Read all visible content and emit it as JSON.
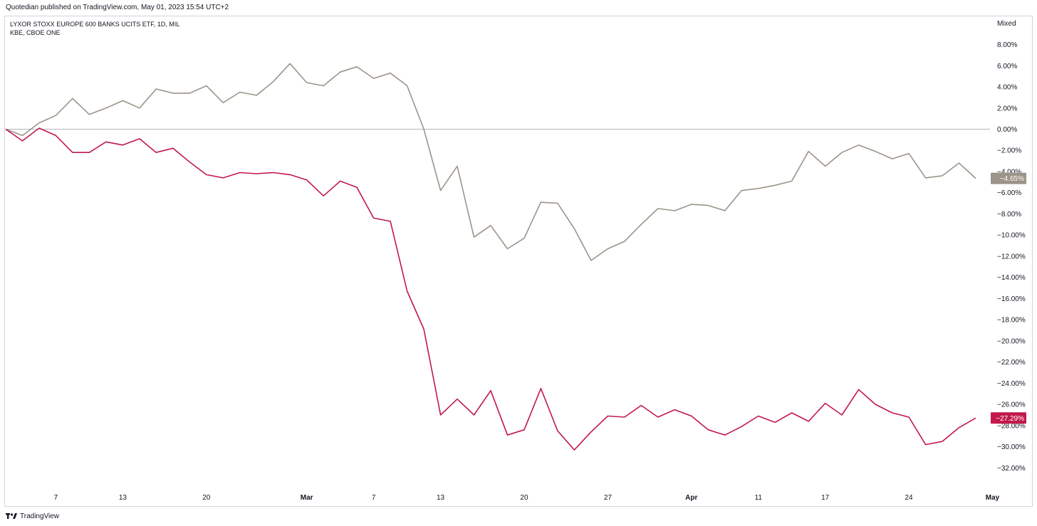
{
  "header": {
    "published": "Quotedian published on TradingView.com, May 01, 2023 15:54 UTC+2"
  },
  "legend": {
    "line1": "LYXOR STOXX EUROPE 600 BANKS UCITS ETF, 1D, MIL",
    "line2": "KBE, CBOE ONE"
  },
  "scale_mode": "Mixed",
  "footer": {
    "brand": "TradingView"
  },
  "chart_data": {
    "type": "line",
    "ylim": [
      -33,
      9
    ],
    "y_ticks": [
      "8.00%",
      "6.00%",
      "4.00%",
      "2.00%",
      "0.00%",
      "−2.00%",
      "−4.00%",
      "−6.00%",
      "−8.00%",
      "−10.00%",
      "−12.00%",
      "−14.00%",
      "−16.00%",
      "−18.00%",
      "−20.00%",
      "−22.00%",
      "−24.00%",
      "−26.00%",
      "−28.00%",
      "−30.00%",
      "−32.00%"
    ],
    "y_tick_values": [
      8,
      6,
      4,
      2,
      0,
      -2,
      -4,
      -6,
      -8,
      -10,
      -12,
      -14,
      -16,
      -18,
      -20,
      -22,
      -24,
      -26,
      -28,
      -30,
      -32
    ],
    "x_ticks": [
      {
        "label": "7",
        "pos": 3,
        "bold": false
      },
      {
        "label": "13",
        "pos": 7,
        "bold": false
      },
      {
        "label": "20",
        "pos": 12,
        "bold": false
      },
      {
        "label": "Mar",
        "pos": 18,
        "bold": true
      },
      {
        "label": "7",
        "pos": 22,
        "bold": false
      },
      {
        "label": "13",
        "pos": 26,
        "bold": false
      },
      {
        "label": "20",
        "pos": 31,
        "bold": false
      },
      {
        "label": "27",
        "pos": 36,
        "bold": false
      },
      {
        "label": "Apr",
        "pos": 41,
        "bold": true
      },
      {
        "label": "11",
        "pos": 45,
        "bold": false
      },
      {
        "label": "17",
        "pos": 49,
        "bold": false
      },
      {
        "label": "24",
        "pos": 54,
        "bold": false
      },
      {
        "label": "May",
        "pos": 59,
        "bold": true
      }
    ],
    "series": [
      {
        "color": "#9c9489",
        "last_label": "−4.65%",
        "values": [
          0,
          -0.6,
          0.6,
          1.3,
          2.9,
          1.4,
          2.0,
          2.7,
          2.0,
          3.8,
          3.4,
          3.4,
          4.1,
          2.5,
          3.5,
          3.2,
          4.5,
          6.2,
          4.4,
          4.1,
          5.4,
          5.9,
          4.8,
          5.3,
          4.1,
          0.0,
          -5.8,
          -3.5,
          -10.2,
          -9.1,
          -11.3,
          -10.3,
          -6.9,
          -7.0,
          -9.4,
          -12.4,
          -11.3,
          -10.6,
          -9.0,
          -7.5,
          -7.7,
          -7.1,
          -7.2,
          -7.7,
          -5.8,
          -5.6,
          -5.3,
          -4.9,
          -2.1,
          -3.5,
          -2.2,
          -1.5,
          -2.1,
          -2.8,
          -2.3,
          -4.6,
          -4.4,
          -3.2,
          -4.65
        ]
      },
      {
        "color": "#c2184b",
        "last_label": "−27.29%",
        "values": [
          0,
          -1.1,
          0.1,
          -0.6,
          -2.2,
          -2.2,
          -1.2,
          -1.5,
          -0.9,
          -2.2,
          -1.8,
          -3.1,
          -4.3,
          -4.6,
          -4.1,
          -4.2,
          -4.1,
          -4.3,
          -4.8,
          -6.3,
          -4.9,
          -5.5,
          -8.4,
          -8.7,
          -15.3,
          -18.9,
          -27.0,
          -25.5,
          -27.0,
          -24.7,
          -28.9,
          -28.4,
          -24.5,
          -28.5,
          -30.3,
          -28.6,
          -27.1,
          -27.2,
          -26.1,
          -27.2,
          -26.5,
          -27.1,
          -28.4,
          -28.9,
          -28.1,
          -27.1,
          -27.7,
          -26.8,
          -27.6,
          -25.9,
          -27.0,
          -24.6,
          -26.0,
          -26.8,
          -27.2,
          -29.8,
          -29.5,
          -28.2,
          -27.29
        ]
      }
    ],
    "zero_line": true,
    "grid": false,
    "legend_position": "top-left"
  }
}
